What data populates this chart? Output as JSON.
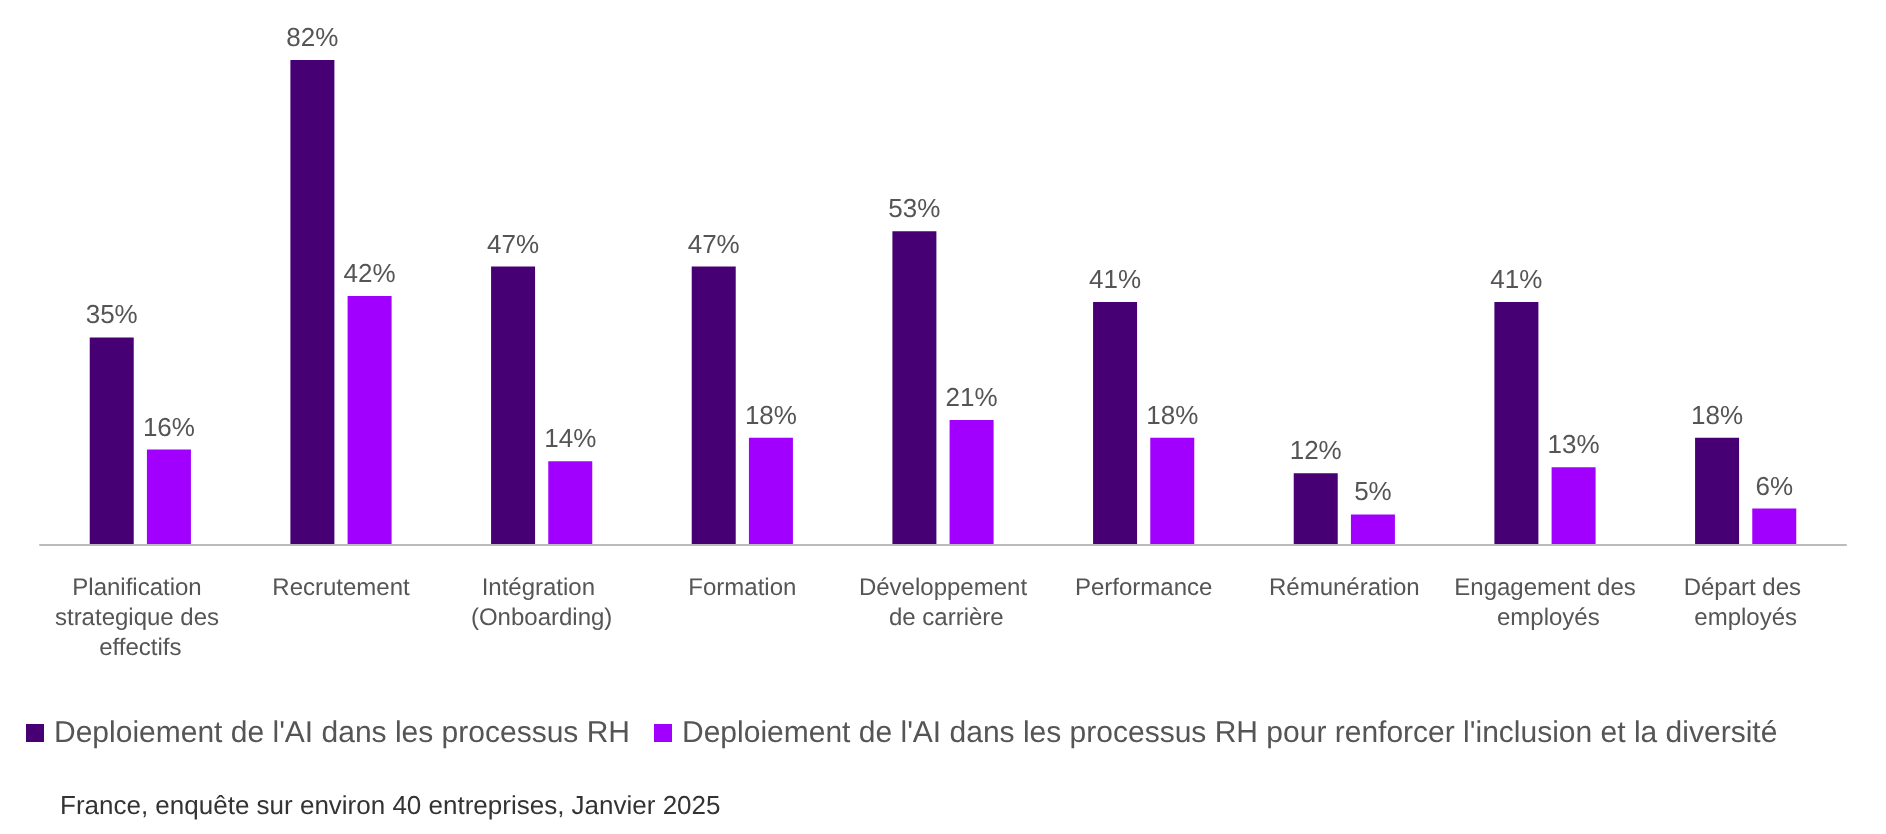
{
  "chart_data": {
    "type": "bar",
    "categories": [
      "Planification strategique des effectifs",
      "Recrutement",
      "Intégration (Onboarding)",
      "Formation",
      "Développement de carrière",
      "Performance",
      "Rémunération",
      "Engagement des employés",
      "Départ des employés"
    ],
    "series": [
      {
        "name": "Deploiement de l'AI dans les processus RH",
        "color": "#460073",
        "values": [
          35,
          82,
          47,
          47,
          53,
          41,
          12,
          41,
          18
        ],
        "value_labels": [
          "35%",
          "82%",
          "47%",
          "47%",
          "53%",
          "41%",
          "12%",
          "41%",
          "18%"
        ]
      },
      {
        "name": "Deploiement de l'AI dans les processus RH pour renforcer l'inclusion et la diversité",
        "color": "#a100ff",
        "values": [
          16,
          42,
          14,
          18,
          21,
          18,
          5,
          13,
          6
        ],
        "value_labels": [
          "16%",
          "42%",
          "14%",
          "18%",
          "21%",
          "18%",
          "5%",
          "13%",
          "6%"
        ]
      }
    ],
    "ylim": [
      0,
      82
    ],
    "legend": "bottom left",
    "tick_labels": "x",
    "annotations": [
      "France, enquête sur environ 40 entreprises, Janvier 2025"
    ]
  }
}
